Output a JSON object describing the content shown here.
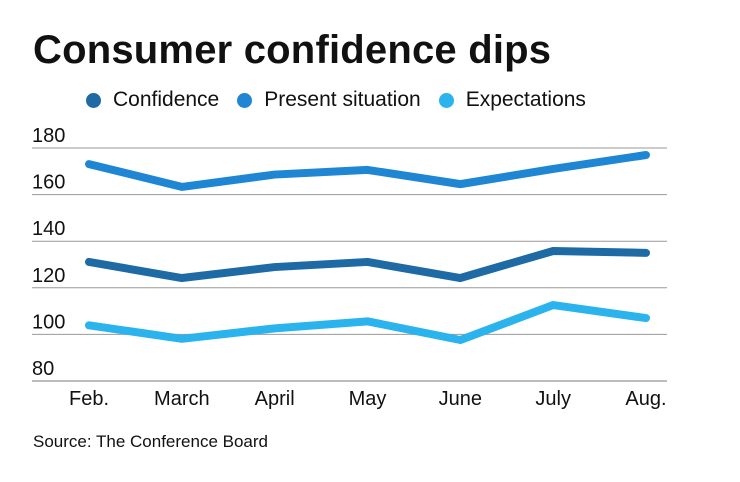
{
  "chart_data": {
    "type": "line",
    "title": "Consumer confidence dips",
    "xlabel": "",
    "ylabel": "",
    "categories": [
      "Feb.",
      "March",
      "April",
      "May",
      "June",
      "July",
      "Aug."
    ],
    "y_ticks": [
      80,
      100,
      120,
      140,
      160,
      180
    ],
    "ylim": [
      80,
      180
    ],
    "grid": true,
    "legend_position": "top",
    "series": [
      {
        "name": "Confidence",
        "color": "#1e6aa5",
        "values": [
          131.1,
          124.2,
          128.9,
          131.1,
          124.2,
          135.8,
          135.0
        ]
      },
      {
        "name": "Present situation",
        "color": "#1f86d3",
        "values": [
          173.1,
          163.3,
          168.6,
          170.6,
          164.5,
          171.0,
          177.0
        ]
      },
      {
        "name": "Expectations",
        "color": "#2bb3ee",
        "values": [
          103.9,
          98.1,
          102.6,
          105.6,
          97.6,
          112.6,
          107.0
        ]
      }
    ],
    "source": "Source: The Conference Board"
  }
}
